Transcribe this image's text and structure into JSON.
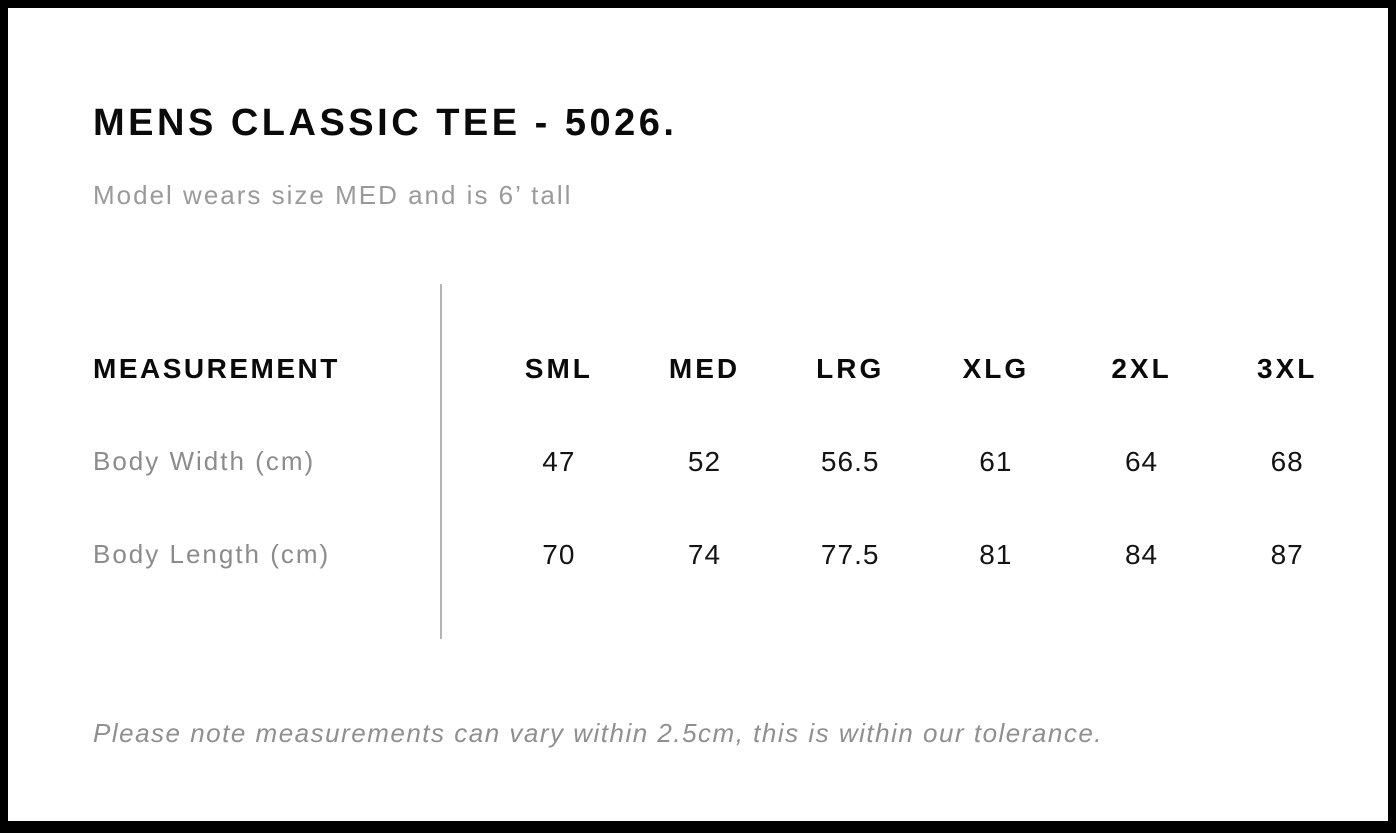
{
  "page": {
    "title": "MENS CLASSIC TEE - 5026.",
    "subtitle": "Model wears size MED and is 6’ tall",
    "footnote": "Please note measurements can vary within 2.5cm, this is within our tolerance."
  },
  "size_chart": {
    "measurement_header": "MEASUREMENT",
    "sizes": [
      "SML",
      "MED",
      "LRG",
      "XLG",
      "2XL",
      "3XL"
    ],
    "rows": [
      {
        "label": "Body Width (cm)",
        "values": [
          "47",
          "52",
          "56.5",
          "61",
          "64",
          "68"
        ]
      },
      {
        "label": "Body Length (cm)",
        "values": [
          "70",
          "74",
          "77.5",
          "81",
          "84",
          "87"
        ]
      }
    ]
  },
  "chart_data": {
    "type": "table",
    "title": "MENS CLASSIC TEE - 5026.",
    "subtitle": "Model wears size MED and is 6’ tall",
    "columns": [
      "MEASUREMENT",
      "SML",
      "MED",
      "LRG",
      "XLG",
      "2XL",
      "3XL"
    ],
    "rows": [
      [
        "Body Width (cm)",
        47,
        52,
        56.5,
        61,
        64,
        68
      ],
      [
        "Body Length (cm)",
        70,
        74,
        77.5,
        81,
        84,
        87
      ]
    ],
    "footnote": "Please note measurements can vary within 2.5cm, this is within our tolerance."
  },
  "colors": {
    "frame_border": "#000000",
    "heading_text": "#0a0a0a",
    "muted_text": "#9a9a9a",
    "value_text": "#141414",
    "divider": "#b4b4b4",
    "background": "#ffffff"
  }
}
